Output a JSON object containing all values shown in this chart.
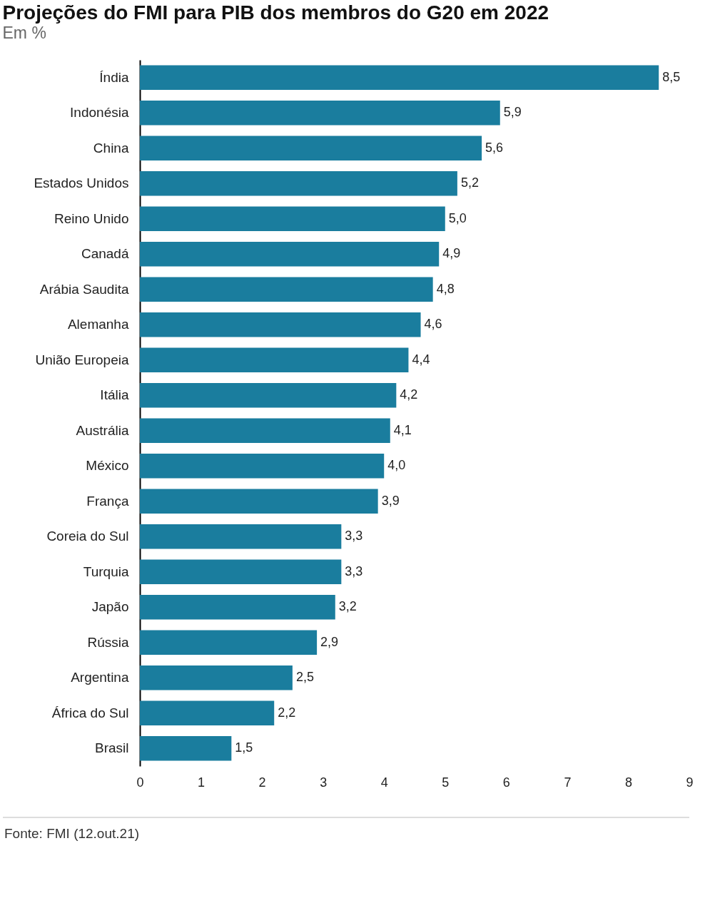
{
  "chart_data": {
    "type": "bar",
    "orientation": "horizontal",
    "title": "Projeções do FMI para PIB dos membros do G20 em 2022",
    "subtitle": "Em %",
    "categories": [
      "Índia",
      "Indonésia",
      "China",
      "Estados Unidos",
      "Reino Unido",
      "Canadá",
      "Arábia Saudita",
      "Alemanha",
      "União Europeia",
      "Itália",
      "Austrália",
      "México",
      "França",
      "Coreia do Sul",
      "Turquia",
      "Japão",
      "Rússia",
      "Argentina",
      "África do Sul",
      "Brasil"
    ],
    "values": [
      8.5,
      5.9,
      5.6,
      5.2,
      5.0,
      4.9,
      4.8,
      4.6,
      4.4,
      4.2,
      4.1,
      4.0,
      3.9,
      3.3,
      3.3,
      3.2,
      2.9,
      2.5,
      2.2,
      1.5
    ],
    "value_labels": [
      "8,5",
      "5,9",
      "5,6",
      "5,2",
      "5,0",
      "4,9",
      "4,8",
      "4,6",
      "4,4",
      "4,2",
      "4,1",
      "4,0",
      "3,9",
      "3,3",
      "3,3",
      "3,2",
      "2,9",
      "2,5",
      "2,2",
      "1,5"
    ],
    "color": "#1a7d9e",
    "xlim": [
      0,
      9
    ],
    "xticks": [
      0,
      1,
      2,
      3,
      4,
      5,
      6,
      7,
      8,
      9
    ],
    "grid": false,
    "annotations": [
      "Fonte: FMI (12.out.21)"
    ]
  }
}
